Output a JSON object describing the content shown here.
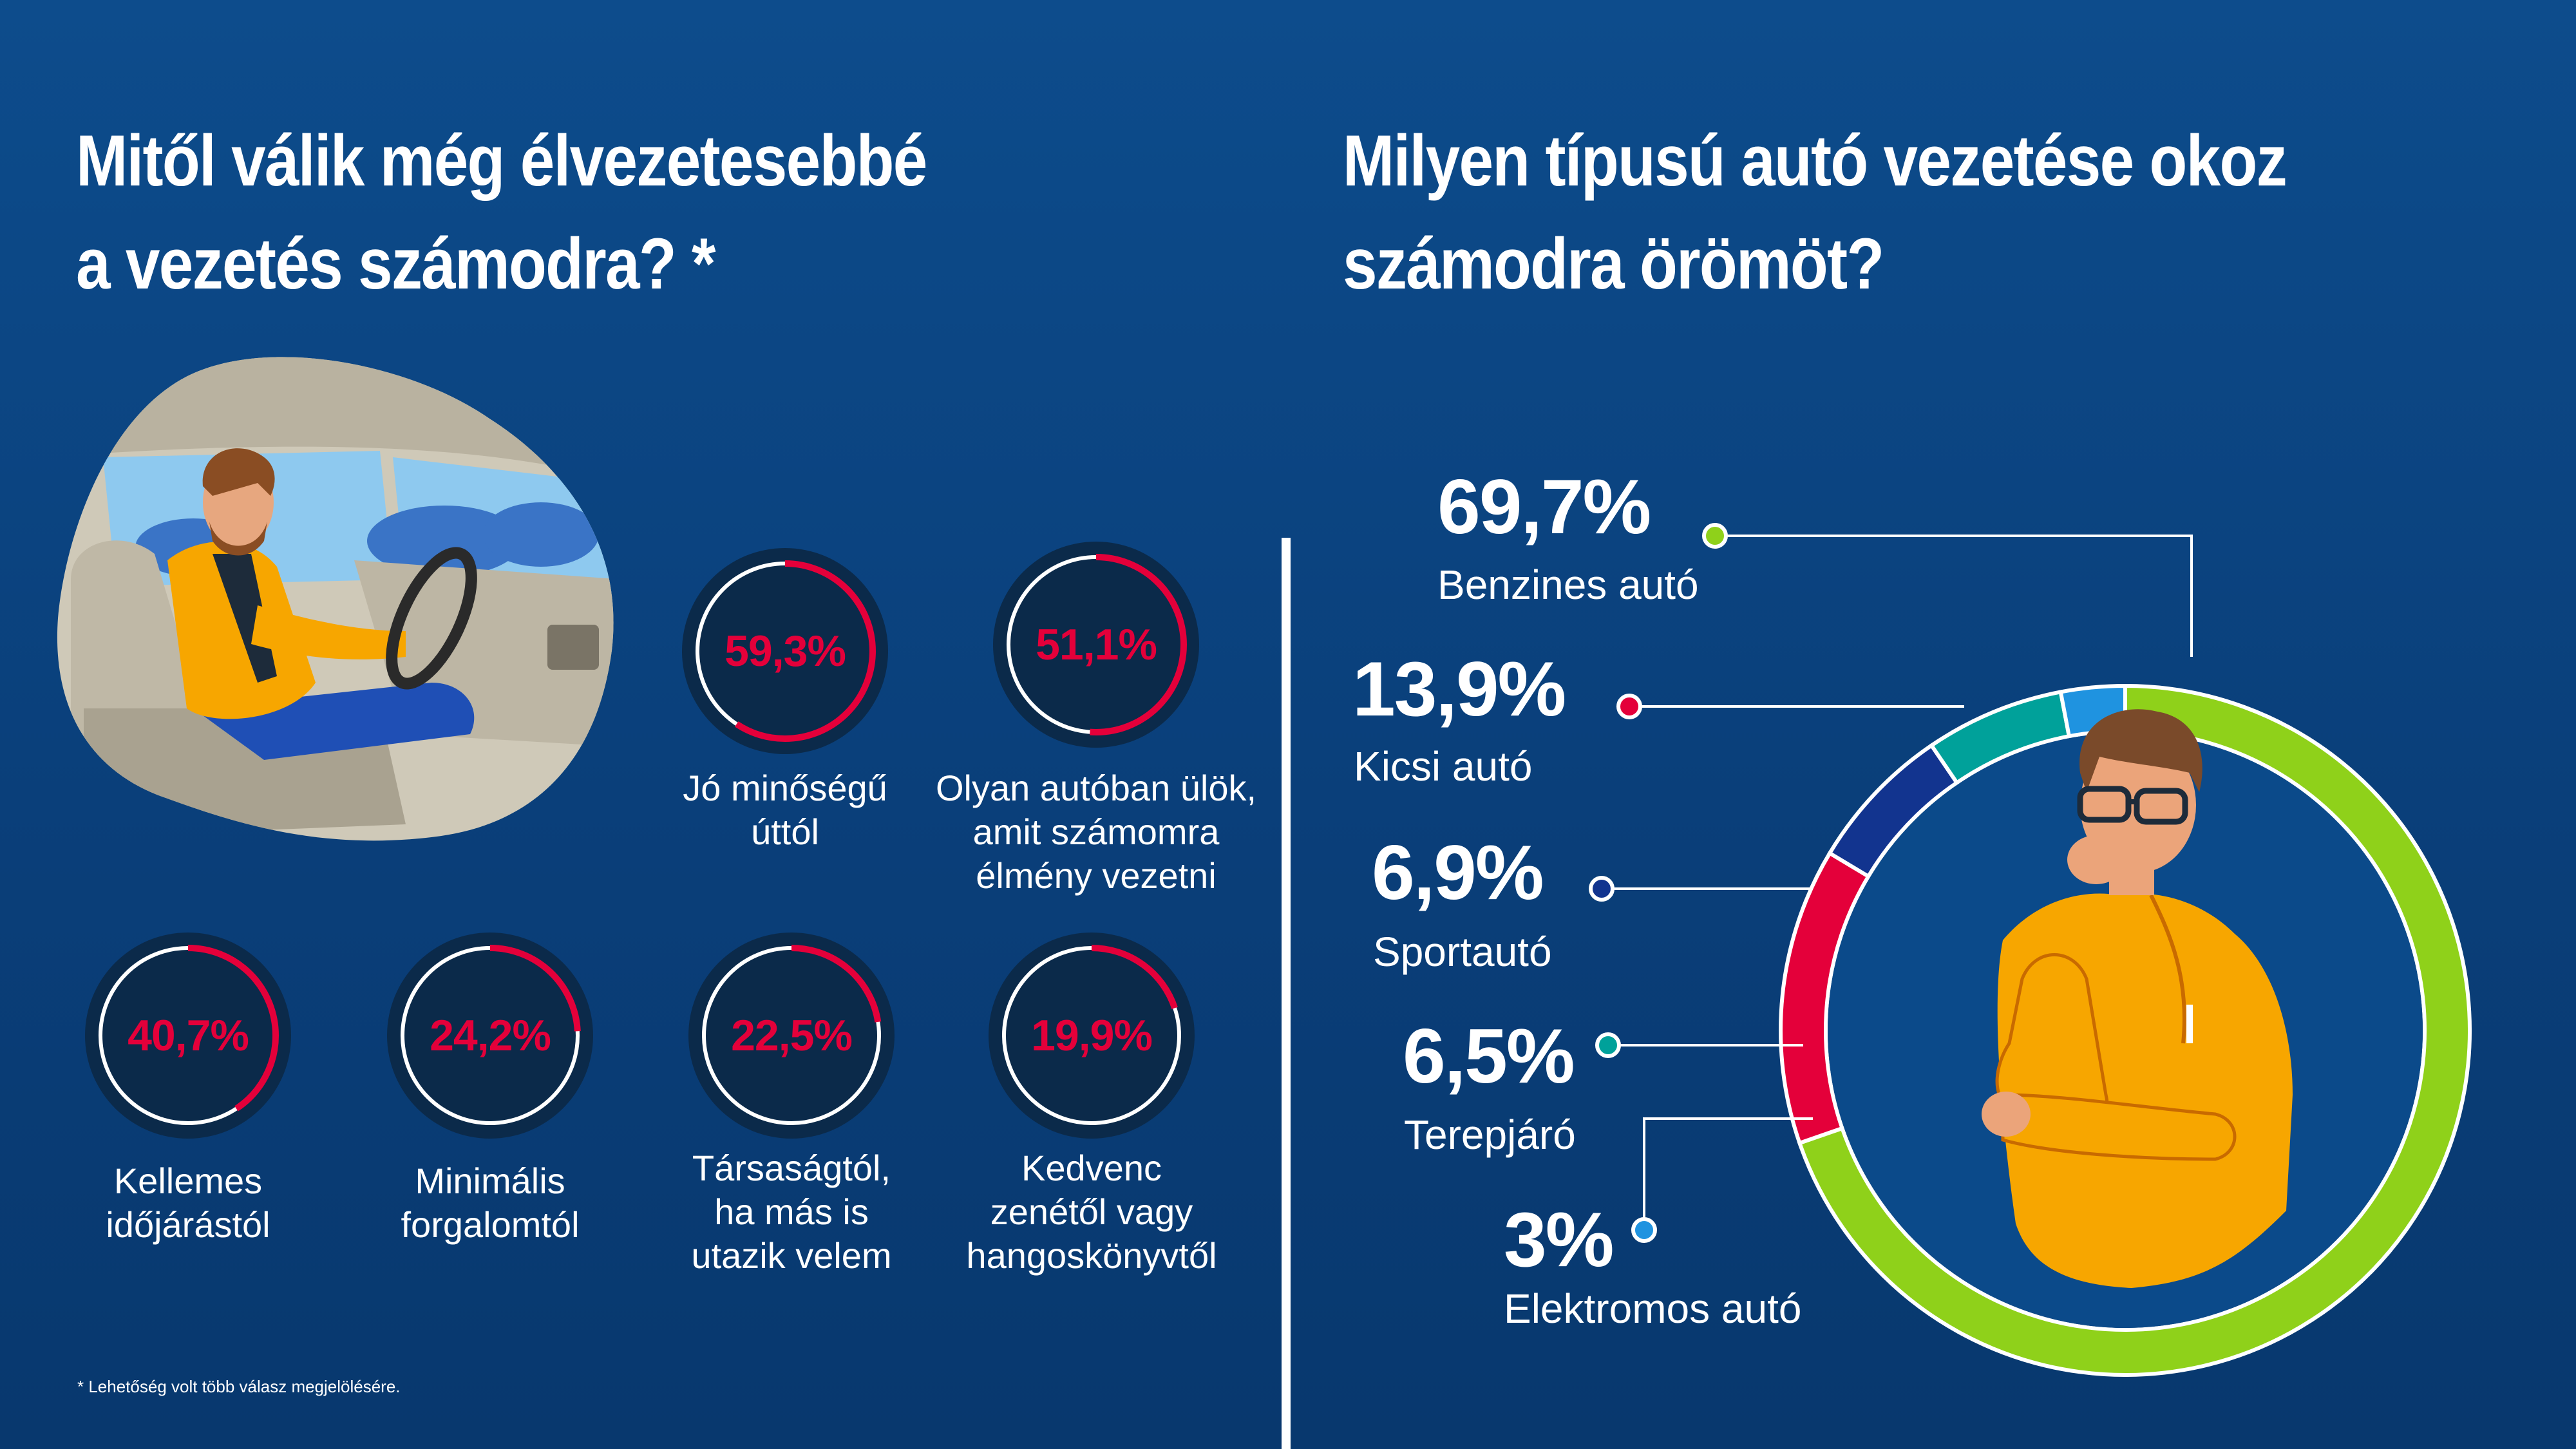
{
  "left": {
    "title_lines": [
      "Mitől válik még élvezetesebbé",
      "a vezetés számodra? *"
    ],
    "footnote": "* Lehetőség volt több válasz megjelölésére."
  },
  "right": {
    "title_lines": [
      "Milyen típusú autó vezetése okoz",
      "számodra örömöt?"
    ]
  },
  "colors": {
    "background": "#0a4280",
    "gauge_dark": "#0b2a4a",
    "gauge_red": "#e4003a",
    "benzin": "#8fd11a",
    "kicsi": "#e4003a",
    "sport": "#12348f",
    "terep": "#00a19a",
    "elektro": "#1f93e0"
  },
  "chart_data": [
    {
      "type": "bar",
      "categories": [
        [
          "Jó minőségű",
          "úttól"
        ],
        [
          "Olyan autóban ülök,",
          "amit számomra",
          "élmény vezetni"
        ],
        [
          "Kellemes",
          "időjárástól"
        ],
        [
          "Minimális",
          "forgalomtól"
        ],
        [
          "Társaságtól,",
          "ha más is",
          "utazik velem"
        ],
        [
          "Kedvenc",
          "zenétől vagy",
          "hangoskönyvtől"
        ]
      ],
      "values": [
        59.3,
        51.1,
        40.7,
        24.2,
        22.5,
        19.9
      ],
      "value_labels": [
        "59,3%",
        "51,1%",
        "40,7%",
        "24,2%",
        "22,5%",
        "19,9%"
      ],
      "ylim": [
        0,
        100
      ]
    },
    {
      "type": "pie",
      "categories": [
        "Benzines autó",
        "Kicsi autó",
        "Sportautó",
        "Terepjáró",
        "Elektromos autó"
      ],
      "values": [
        69.7,
        13.9,
        6.9,
        6.5,
        3.0
      ],
      "value_labels": [
        "69,7%",
        "13,9%",
        "6,9%",
        "6,5%",
        "3%"
      ]
    }
  ]
}
